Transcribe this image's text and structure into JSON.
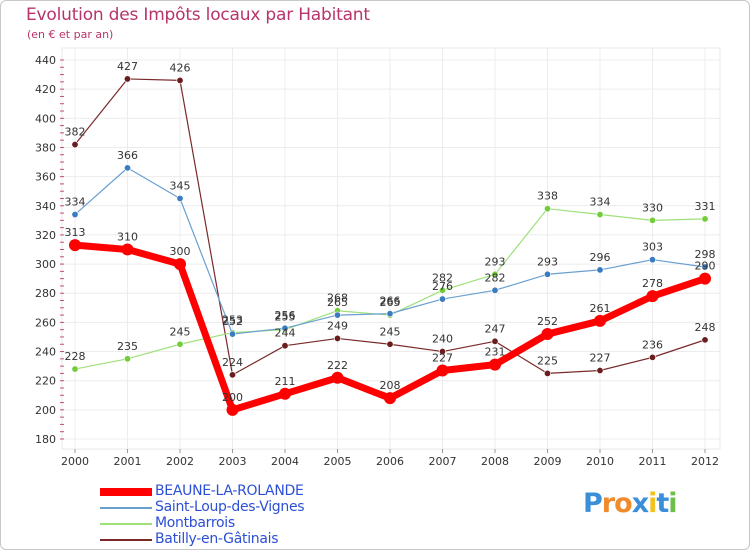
{
  "chart_data": {
    "type": "line",
    "title": "Evolution des Impôts locaux par Habitant",
    "subtitle": "(en € et par an)",
    "x": [
      "2000",
      "2001",
      "2002",
      "2003",
      "2004",
      "2005",
      "2006",
      "2007",
      "2008",
      "2009",
      "2010",
      "2011",
      "2012"
    ],
    "ylim": [
      180,
      440
    ],
    "yticks": [
      180,
      200,
      220,
      240,
      260,
      280,
      300,
      320,
      340,
      360,
      380,
      400,
      420,
      440
    ],
    "series": [
      {
        "name": "BEAUNE-LA-ROLANDE",
        "color": "#ff0000",
        "marker_color": "#ff0000",
        "values": [
          313,
          310,
          300,
          200,
          211,
          222,
          208,
          227,
          231,
          252,
          261,
          278,
          290
        ]
      },
      {
        "name": "Saint-Loup-des-Vignes",
        "color": "#6aa0d0",
        "marker_color": "#3a7cc0",
        "values": [
          334,
          366,
          345,
          252,
          256,
          265,
          266,
          276,
          282,
          293,
          296,
          303,
          298
        ]
      },
      {
        "name": "Montbarrois",
        "color": "#9fe07a",
        "marker_color": "#72cc3c",
        "values": [
          228,
          235,
          245,
          253,
          255,
          268,
          265,
          282,
          293,
          338,
          334,
          330,
          331
        ]
      },
      {
        "name": "Batilly-en-Gâtinais",
        "color": "#7a2a2a",
        "marker_color": "#6a1d1d",
        "values": [
          382,
          427,
          426,
          224,
          244,
          249,
          245,
          240,
          247,
          225,
          227,
          236,
          248
        ]
      }
    ],
    "point_labels": [
      [
        "313",
        "310",
        "300",
        "200",
        "211",
        "222",
        "208",
        "227",
        "231",
        "252",
        "261",
        "278",
        "290"
      ],
      [
        "334",
        "366",
        "345",
        "252",
        "256",
        "265",
        "266",
        "276",
        "282",
        "293",
        "296",
        "303",
        "298"
      ],
      [
        "228",
        "235",
        "245",
        "253",
        "255",
        "268",
        "265",
        "282",
        "293",
        "338",
        "334",
        "330",
        "331"
      ],
      [
        "382",
        "427",
        "426",
        "224",
        "244",
        "249",
        "245",
        "240",
        "247",
        "225",
        "227",
        "236",
        "248"
      ]
    ],
    "grid": true
  },
  "logo": {
    "text": "Proxiti",
    "letters": [
      "P",
      "r",
      "o",
      "x",
      "i",
      "t",
      "i"
    ],
    "colors": [
      "#3a8fd8",
      "#f08a2c",
      "#f08a2c",
      "#3a8fd8",
      "#f2c220",
      "#3a8fd8",
      "#6cc04a"
    ]
  }
}
